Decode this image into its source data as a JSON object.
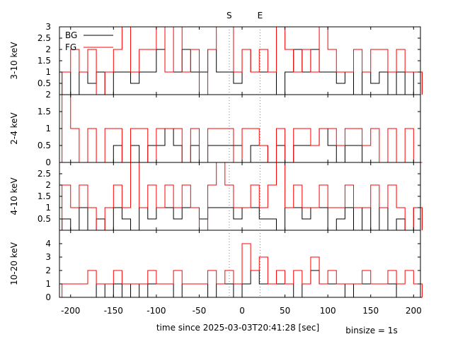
{
  "figure": {
    "xlabel": "time since 2025-03-03T20:41:28 [sec]",
    "binsize": "binsize = 1s",
    "markers": [
      {
        "label": "S",
        "x": -15
      },
      {
        "label": "E",
        "x": 21
      }
    ],
    "legend": [
      {
        "label": "BG",
        "color": "#000000"
      },
      {
        "label": "FG",
        "color": "#ff0000"
      }
    ],
    "xticks": [
      "-200",
      "-150",
      "-100",
      "-50",
      "0",
      "50",
      "100",
      "150",
      "200"
    ]
  },
  "chart_data": [
    {
      "type": "line",
      "title": "",
      "ylabel": "3-10 keV",
      "xlim": [
        -213,
        208
      ],
      "ylim": [
        0,
        3
      ],
      "yticks": [
        "0.5",
        "1",
        "1.5",
        "2",
        "2.5",
        "3"
      ],
      "legend_position": "top-left",
      "series": [
        {
          "name": "BG",
          "color": "#000000",
          "step": "hist",
          "x": [
            -210,
            -200,
            -190,
            -180,
            -170,
            -160,
            -150,
            -140,
            -130,
            -120,
            -110,
            -100,
            -90,
            -80,
            -70,
            -60,
            -50,
            -40,
            -30,
            -20,
            -10,
            0,
            10,
            20,
            30,
            40,
            50,
            60,
            70,
            80,
            90,
            100,
            110,
            120,
            130,
            140,
            150,
            160,
            170,
            180,
            190,
            200
          ],
          "y": [
            1,
            0,
            1,
            0.5,
            1,
            0,
            1,
            1,
            0.5,
            1,
            1,
            2,
            1,
            1,
            2,
            1,
            1,
            2,
            1,
            1,
            0.5,
            2,
            1,
            1,
            1,
            0,
            1,
            2,
            1,
            2,
            1,
            1,
            0.5,
            1,
            0,
            1,
            0.5,
            1,
            0,
            1,
            0,
            1
          ]
        },
        {
          "name": "FG",
          "color": "#ff0000",
          "step": "hist",
          "x": [
            -210,
            -200,
            -190,
            -180,
            -170,
            -160,
            -150,
            -140,
            -130,
            -120,
            -110,
            -100,
            -90,
            -80,
            -70,
            -60,
            -50,
            -40,
            -30,
            -20,
            -10,
            0,
            10,
            20,
            30,
            40,
            50,
            60,
            70,
            80,
            90,
            100,
            110,
            120,
            130,
            140,
            150,
            160,
            170,
            180,
            190,
            200
          ],
          "y": [
            1,
            2,
            1,
            2,
            0,
            1,
            2,
            3,
            1,
            2,
            2,
            3,
            1,
            3,
            1,
            2,
            0,
            2,
            3,
            3,
            1,
            2,
            1,
            2,
            1,
            3,
            2,
            1,
            2,
            1,
            3,
            2,
            1,
            1,
            2,
            1,
            2,
            2,
            1,
            2,
            1,
            1
          ]
        }
      ]
    },
    {
      "type": "line",
      "title": "",
      "ylabel": "2-4 keV",
      "xlim": [
        -213,
        208
      ],
      "ylim": [
        0,
        2
      ],
      "yticks": [
        "0",
        "0.5",
        "1",
        "1.5",
        "2"
      ],
      "series": [
        {
          "name": "BG",
          "color": "#000000",
          "step": "hist",
          "x": [
            -210,
            -200,
            -190,
            -180,
            -170,
            -160,
            -150,
            -140,
            -130,
            -120,
            -110,
            -100,
            -90,
            -80,
            -70,
            -60,
            -50,
            -40,
            -30,
            -20,
            -10,
            0,
            10,
            20,
            30,
            40,
            50,
            60,
            70,
            80,
            90,
            100,
            110,
            120,
            130,
            140,
            150,
            160,
            170,
            180,
            190,
            200
          ],
          "y": [
            0,
            0,
            0,
            0,
            0,
            0,
            0.5,
            0,
            0.5,
            0,
            0.5,
            0.5,
            1,
            0.5,
            0,
            0.5,
            0,
            0.5,
            0.5,
            0.5,
            0.5,
            0,
            0.5,
            0.5,
            0,
            0.5,
            0,
            0.5,
            0.5,
            0.5,
            1,
            0.5,
            0,
            0.5,
            0.5,
            0,
            0,
            0,
            0,
            0,
            0,
            0
          ]
        },
        {
          "name": "FG",
          "color": "#ff0000",
          "step": "hist",
          "x": [
            -210,
            -200,
            -190,
            -180,
            -170,
            -160,
            -150,
            -140,
            -130,
            -120,
            -110,
            -100,
            -90,
            -80,
            -70,
            -60,
            -50,
            -40,
            -30,
            -20,
            -10,
            0,
            10,
            20,
            30,
            40,
            50,
            60,
            70,
            80,
            90,
            100,
            110,
            120,
            130,
            140,
            150,
            160,
            170,
            180,
            190,
            200
          ],
          "y": [
            2,
            1,
            0,
            1,
            0,
            1,
            1,
            0,
            1,
            1,
            0,
            1,
            1,
            1,
            0,
            1,
            0,
            1,
            1,
            1,
            0,
            1,
            1,
            0.5,
            0,
            1,
            0,
            1,
            1,
            0.5,
            1,
            1,
            0.5,
            1,
            1,
            0.5,
            1,
            0,
            1,
            0,
            1,
            0
          ]
        }
      ]
    },
    {
      "type": "line",
      "title": "",
      "ylabel": "4-10 keV",
      "xlim": [
        -213,
        208
      ],
      "ylim": [
        0,
        3
      ],
      "yticks": [
        "0.5",
        "1",
        "1.5",
        "2",
        "2.5"
      ],
      "series": [
        {
          "name": "BG",
          "color": "#000000",
          "step": "hist",
          "x": [
            -210,
            -200,
            -190,
            -180,
            -170,
            -160,
            -150,
            -140,
            -130,
            -120,
            -110,
            -100,
            -90,
            -80,
            -70,
            -60,
            -50,
            -40,
            -30,
            -20,
            -10,
            0,
            10,
            20,
            30,
            40,
            50,
            60,
            70,
            80,
            90,
            100,
            110,
            120,
            130,
            140,
            150,
            160,
            170,
            180,
            190,
            200
          ],
          "y": [
            0.5,
            0,
            1,
            0,
            0.5,
            0,
            1,
            0.5,
            0,
            1,
            0.5,
            1,
            1,
            0.5,
            1,
            1,
            0.5,
            1,
            1,
            1,
            0.5,
            1,
            1,
            0.5,
            0.5,
            0,
            1,
            1,
            0.5,
            1,
            1,
            0,
            0.5,
            1,
            0,
            1,
            0,
            1,
            0,
            0.5,
            0,
            1
          ]
        },
        {
          "name": "FG",
          "color": "#ff0000",
          "step": "hist",
          "x": [
            -210,
            -200,
            -190,
            -180,
            -170,
            -160,
            -150,
            -140,
            -130,
            -120,
            -110,
            -100,
            -90,
            -80,
            -70,
            -60,
            -50,
            -40,
            -30,
            -20,
            -10,
            0,
            10,
            20,
            30,
            40,
            50,
            60,
            70,
            80,
            90,
            100,
            110,
            120,
            130,
            140,
            150,
            160,
            170,
            180,
            190,
            200
          ],
          "y": [
            2,
            1,
            2,
            1,
            0,
            1,
            2,
            1,
            3,
            1,
            2,
            1,
            2,
            1,
            2,
            1,
            0,
            2,
            3,
            2,
            1,
            1,
            2,
            1,
            2,
            3,
            1,
            2,
            1,
            1,
            2,
            1,
            1,
            2,
            1,
            1,
            2,
            1,
            2,
            1,
            0,
            1
          ]
        }
      ]
    },
    {
      "type": "line",
      "title": "",
      "ylabel": "10-20 keV",
      "xlim": [
        -213,
        208
      ],
      "ylim": [
        0,
        5
      ],
      "yticks": [
        "0",
        "1",
        "2",
        "3",
        "4"
      ],
      "series": [
        {
          "name": "BG",
          "color": "#000000",
          "step": "hist",
          "x": [
            -210,
            -200,
            -190,
            -180,
            -170,
            -160,
            -150,
            -140,
            -130,
            -120,
            -110,
            -100,
            -90,
            -80,
            -70,
            -60,
            -50,
            -40,
            -30,
            -20,
            -10,
            0,
            10,
            20,
            30,
            40,
            50,
            60,
            70,
            80,
            90,
            100,
            110,
            120,
            130,
            140,
            150,
            160,
            170,
            180,
            190,
            200
          ],
          "y": [
            0,
            0,
            0,
            0,
            1,
            0,
            1,
            0,
            1,
            0,
            1,
            1,
            1,
            0,
            1,
            1,
            1,
            0,
            1,
            1,
            0,
            1,
            2,
            1,
            1,
            1,
            1,
            0,
            1,
            2,
            1,
            1,
            1,
            0,
            1,
            1,
            1,
            1,
            1,
            0,
            0,
            0
          ]
        },
        {
          "name": "FG",
          "color": "#ff0000",
          "step": "hist",
          "x": [
            -210,
            -200,
            -190,
            -180,
            -170,
            -160,
            -150,
            -140,
            -130,
            -120,
            -110,
            -100,
            -90,
            -80,
            -70,
            -60,
            -50,
            -40,
            -30,
            -20,
            -10,
            0,
            10,
            20,
            30,
            40,
            50,
            60,
            70,
            80,
            90,
            100,
            110,
            120,
            130,
            140,
            150,
            160,
            170,
            180,
            190,
            200
          ],
          "y": [
            1,
            1,
            1,
            2,
            1,
            1,
            2,
            1,
            1,
            1,
            2,
            1,
            1,
            2,
            1,
            1,
            1,
            2,
            1,
            2,
            1,
            4,
            2,
            3,
            1,
            2,
            1,
            2,
            1,
            3,
            1,
            2,
            1,
            1,
            1,
            2,
            1,
            1,
            2,
            1,
            2,
            1
          ]
        }
      ]
    }
  ]
}
